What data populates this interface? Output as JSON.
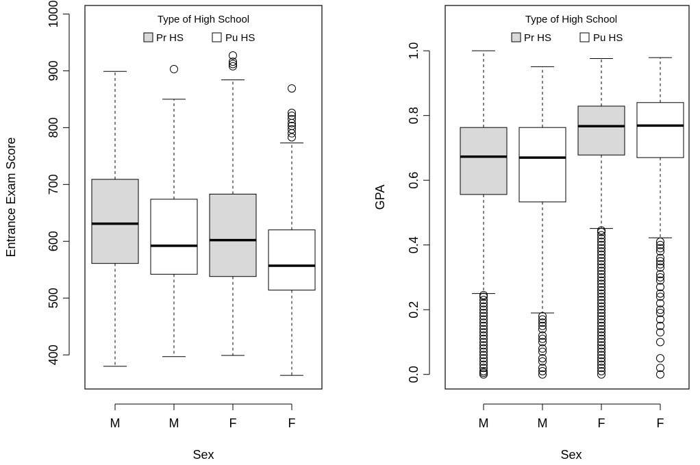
{
  "chart_data": [
    {
      "type": "boxplot",
      "xlabel": "Sex",
      "ylabel": "Entrance Exam Score",
      "ylim": [
        340,
        1015
      ],
      "yticks": [
        400,
        500,
        600,
        700,
        800,
        900,
        1000
      ],
      "categories": [
        "M",
        "M",
        "F",
        "F"
      ],
      "legend": {
        "title": "Type of High School",
        "position": "top",
        "entries": [
          {
            "label": "Pr HS",
            "fill": "#d9d9d9"
          },
          {
            "label": "Pu HS",
            "fill": "#ffffff"
          }
        ]
      },
      "boxes": [
        {
          "group": "Pr HS",
          "fill": "#d9d9d9",
          "min": 380,
          "q1": 561,
          "median": 631,
          "q3": 709,
          "max": 899,
          "outliers": []
        },
        {
          "group": "Pu HS",
          "fill": "#ffffff",
          "min": 397,
          "q1": 542,
          "median": 592,
          "q3": 674,
          "max": 850,
          "outliers": [
            903
          ]
        },
        {
          "group": "Pr HS",
          "fill": "#d9d9d9",
          "min": 399,
          "q1": 538,
          "median": 602,
          "q3": 683,
          "max": 884,
          "outliers": [
            908,
            912,
            916,
            927
          ]
        },
        {
          "group": "Pu HS",
          "fill": "#ffffff",
          "min": 364,
          "q1": 514,
          "median": 557,
          "q3": 620,
          "max": 773,
          "outliers": [
            783,
            790,
            797,
            803,
            808,
            815,
            821,
            826,
            869
          ]
        }
      ]
    },
    {
      "type": "boxplot",
      "xlabel": "Sex",
      "ylabel": "GPA",
      "ylim": [
        -0.045,
        1.14
      ],
      "yticks": [
        0.0,
        0.2,
        0.4,
        0.6,
        0.8,
        1.0
      ],
      "categories": [
        "M",
        "M",
        "F",
        "F"
      ],
      "legend": {
        "title": "Type of High School",
        "position": "top",
        "entries": [
          {
            "label": "Pr HS",
            "fill": "#d9d9d9"
          },
          {
            "label": "Pu HS",
            "fill": "#ffffff"
          }
        ]
      },
      "boxes": [
        {
          "group": "Pr HS",
          "fill": "#d9d9d9",
          "min": 0.25,
          "q1": 0.556,
          "median": 0.673,
          "q3": 0.763,
          "max": 1.0,
          "outliers": [
            0.0,
            0.005,
            0.01,
            0.02,
            0.03,
            0.04,
            0.05,
            0.06,
            0.07,
            0.08,
            0.09,
            0.1,
            0.11,
            0.12,
            0.13,
            0.14,
            0.15,
            0.16,
            0.17,
            0.18,
            0.19,
            0.2,
            0.21,
            0.22,
            0.23,
            0.24,
            0.245
          ]
        },
        {
          "group": "Pu HS",
          "fill": "#ffffff",
          "min": 0.19,
          "q1": 0.533,
          "median": 0.67,
          "q3": 0.763,
          "max": 0.951,
          "outliers": [
            0.0,
            0.01,
            0.02,
            0.04,
            0.05,
            0.07,
            0.08,
            0.1,
            0.11,
            0.12,
            0.14,
            0.15,
            0.16,
            0.17,
            0.18
          ]
        },
        {
          "group": "Pr HS",
          "fill": "#d9d9d9",
          "min": 0.451,
          "q1": 0.678,
          "median": 0.767,
          "q3": 0.829,
          "max": 0.976,
          "outliers": [
            0.0,
            0.01,
            0.02,
            0.03,
            0.04,
            0.05,
            0.06,
            0.07,
            0.08,
            0.09,
            0.1,
            0.11,
            0.12,
            0.13,
            0.14,
            0.15,
            0.16,
            0.17,
            0.18,
            0.19,
            0.2,
            0.21,
            0.22,
            0.23,
            0.24,
            0.25,
            0.26,
            0.27,
            0.28,
            0.29,
            0.3,
            0.31,
            0.32,
            0.33,
            0.34,
            0.35,
            0.36,
            0.37,
            0.38,
            0.39,
            0.4,
            0.41,
            0.42,
            0.43,
            0.44,
            0.445
          ]
        },
        {
          "group": "Pu HS",
          "fill": "#ffffff",
          "min": 0.422,
          "q1": 0.67,
          "median": 0.769,
          "q3": 0.84,
          "max": 0.979,
          "outliers": [
            0.0,
            0.02,
            0.05,
            0.1,
            0.13,
            0.15,
            0.17,
            0.19,
            0.2,
            0.22,
            0.24,
            0.25,
            0.27,
            0.29,
            0.3,
            0.31,
            0.33,
            0.34,
            0.35,
            0.36,
            0.38,
            0.39,
            0.4,
            0.41
          ]
        }
      ]
    }
  ]
}
